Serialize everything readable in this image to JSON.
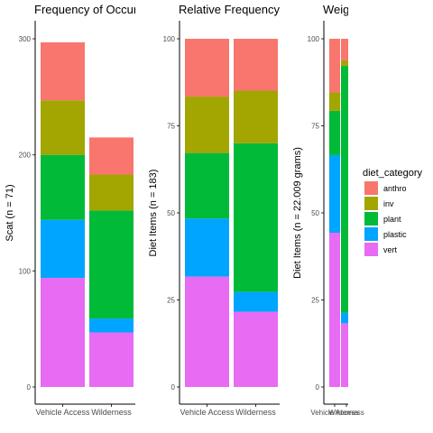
{
  "colors": {
    "anthro": "#F8766D",
    "inv": "#A3A500",
    "plant": "#00BA38",
    "plastic": "#00A5FF",
    "vert": "#E76BF3"
  },
  "legend": {
    "title": "diet_category",
    "items": [
      "anthro",
      "inv",
      "plant",
      "plastic",
      "vert"
    ]
  },
  "chart_data": [
    {
      "type": "bar",
      "stacked": true,
      "title": "Frequency of Occurre",
      "xlabel": "",
      "ylabel": "Scat (n = 71)",
      "categories": [
        "Vehicle Access",
        "Wilderness"
      ],
      "ylim": [
        0,
        300
      ],
      "yticks": [
        0,
        100,
        200,
        300
      ],
      "series": [
        {
          "name": "vert",
          "values": [
            94,
            47
          ]
        },
        {
          "name": "plastic",
          "values": [
            50,
            12
          ]
        },
        {
          "name": "plant",
          "values": [
            56,
            93
          ]
        },
        {
          "name": "inv",
          "values": [
            47,
            31
          ]
        },
        {
          "name": "anthro",
          "values": [
            50,
            32
          ]
        }
      ]
    },
    {
      "type": "bar",
      "stacked": true,
      "title": "Relative Frequency o",
      "xlabel": "",
      "ylabel": "Diet Items (n = 183)",
      "categories": [
        "Vehicle Access",
        "Wilderness"
      ],
      "ylim": [
        0,
        100
      ],
      "yticks": [
        0,
        25,
        50,
        75,
        100
      ],
      "series": [
        {
          "name": "vert",
          "values": [
            31.7,
            21.6
          ]
        },
        {
          "name": "plastic",
          "values": [
            16.7,
            5.7
          ]
        },
        {
          "name": "plant",
          "values": [
            18.8,
            42.7
          ]
        },
        {
          "name": "inv",
          "values": [
            16.2,
            15.1
          ]
        },
        {
          "name": "anthro",
          "values": [
            16.6,
            14.9
          ]
        }
      ]
    },
    {
      "type": "bar",
      "stacked": true,
      "title": "Weight (%)",
      "xlabel": "",
      "ylabel": "Diet Items (n = 22.009 grams)",
      "categories": [
        "Vehicle Access",
        "Wilderness"
      ],
      "ylim": [
        0,
        100
      ],
      "yticks": [
        0,
        25,
        50,
        75,
        100
      ],
      "series": [
        {
          "name": "vert",
          "values": [
            44.3,
            18.3
          ]
        },
        {
          "name": "plastic",
          "values": [
            22.3,
            3.0
          ]
        },
        {
          "name": "plant",
          "values": [
            12.7,
            70.9
          ]
        },
        {
          "name": "inv",
          "values": [
            5.3,
            1.6
          ]
        },
        {
          "name": "anthro",
          "values": [
            15.4,
            6.2
          ]
        }
      ]
    }
  ]
}
